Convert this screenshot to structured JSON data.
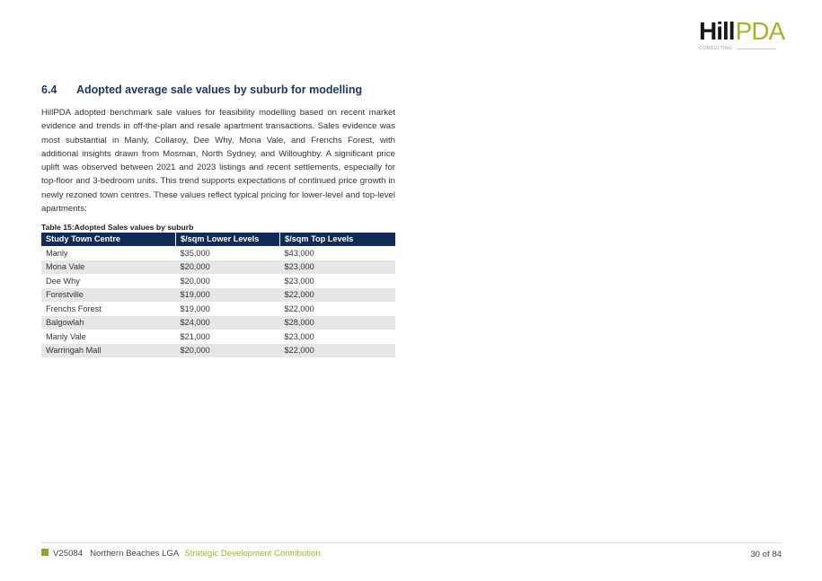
{
  "logo": {
    "text_bold": "Hill",
    "text_light": "PDA",
    "subtext": "CONSULTING"
  },
  "section": {
    "number": "6.4",
    "title": "Adopted average sale values by suburb for modelling"
  },
  "body": "HillPDA adopted benchmark sale values for feasibility modelling based on recent market evidence and trends in off-the-plan and resale apartment transactions.  Sales evidence was most substantial in Manly, Collaroy, Dee Why, Mona Vale, and Frenchs Forest, with additional insights drawn from Mosman, North Sydney, and Willoughby.  A significant price uplift was observed between 2021 and 2023 listings and recent settlements, especially for top-floor and 3-bedroom units.  This trend supports expectations of continued price growth in newly rezoned town centres. These values reflect typical pricing for lower-level and top-level apartments:",
  "table": {
    "caption": "Table 15:Adopted Sales values by suburb",
    "headers": [
      "Study Town Centre",
      "$/sqm Lower Levels",
      "$/sqm Top Levels"
    ],
    "rows": [
      [
        "Manly",
        "$35,000",
        "$43,000"
      ],
      [
        "Mona Vale",
        "$20,000",
        "$23,000"
      ],
      [
        "Dee Why",
        "$20,000",
        "$23,000"
      ],
      [
        "Forestville",
        "$19,000",
        "$22,000"
      ],
      [
        "Frenchs Forest",
        "$19,000",
        "$22,000"
      ],
      [
        "Balgowlah",
        "$24,000",
        "$28,000"
      ],
      [
        "Manly Vale",
        "$21,000",
        "$23,000"
      ],
      [
        "Warringah Mall",
        "$20,000",
        "$22,000"
      ]
    ]
  },
  "footer": {
    "code": "V25084",
    "client": "Northern Beaches LGA",
    "project": "Strategic Development Contribution",
    "page": "30 of 84"
  },
  "colors": {
    "heading": "#1f3864",
    "table_header": "#0f2b56",
    "brand_green": "#a5b22e"
  }
}
